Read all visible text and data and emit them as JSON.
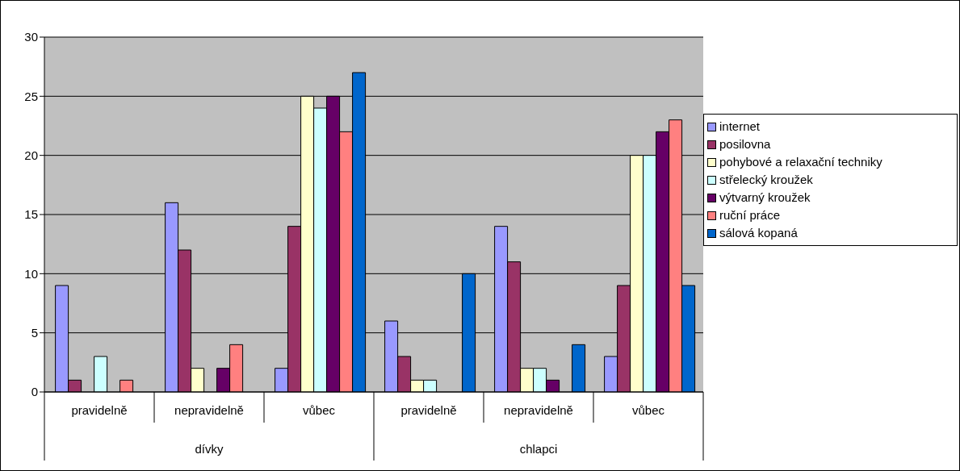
{
  "chart_data": {
    "type": "bar",
    "categories": [
      "pravidelně",
      "nepravidelně",
      "vůbec",
      "pravidelně",
      "nepravidelně",
      "vůbec"
    ],
    "annotations": [
      "dívky",
      "chlapci"
    ],
    "series": [
      {
        "name": "internet",
        "color": "#9999ff",
        "values": [
          9,
          16,
          2,
          6,
          14,
          3
        ]
      },
      {
        "name": "posilovna",
        "color": "#993366",
        "values": [
          1,
          12,
          14,
          3,
          11,
          9
        ]
      },
      {
        "name": "pohybové a relaxační techniky",
        "color": "#ffffcc",
        "values": [
          0,
          2,
          25,
          1,
          2,
          20
        ]
      },
      {
        "name": "střelecký kroužek",
        "color": "#ccffff",
        "values": [
          3,
          0,
          24,
          1,
          2,
          20
        ]
      },
      {
        "name": "výtvarný kroužek",
        "color": "#660066",
        "values": [
          0,
          2,
          25,
          0,
          1,
          22
        ]
      },
      {
        "name": "ruční práce",
        "color": "#ff8080",
        "values": [
          1,
          4,
          22,
          0,
          0,
          23
        ]
      },
      {
        "name": "sálová kopaná",
        "color": "#0066cc",
        "values": [
          0,
          0,
          27,
          10,
          4,
          9
        ]
      }
    ],
    "ylim": [
      0,
      30
    ],
    "yticks": [
      0,
      5,
      10,
      15,
      20,
      25,
      30
    ],
    "grid": "y",
    "legend": "right"
  }
}
